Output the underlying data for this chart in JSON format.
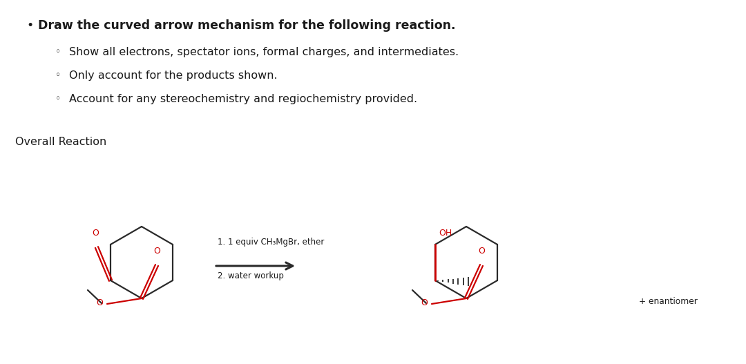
{
  "bg_color": "#ffffff",
  "text_color": "#1a1a1a",
  "red_color": "#cc0000",
  "dark_color": "#2a2a2a",
  "bullet_text": "Draw the curved arrow mechanism for the following reaction.",
  "sub1": "Show all electrons, spectator ions, formal charges, and intermediates.",
  "sub2": "Only account for the products shown.",
  "sub3": "Account for any stereochemistry and regiochemistry provided.",
  "overall_label": "Overall Reaction",
  "reagent1": "1. 1 equiv CH₃MgBr, ether",
  "reagent2": "2. water workup",
  "enantiomer": "+ enantiomer",
  "bullet_fs": 12.5,
  "sub_fs": 11.5,
  "chem_fs": 9.0,
  "small_fs": 8.5
}
